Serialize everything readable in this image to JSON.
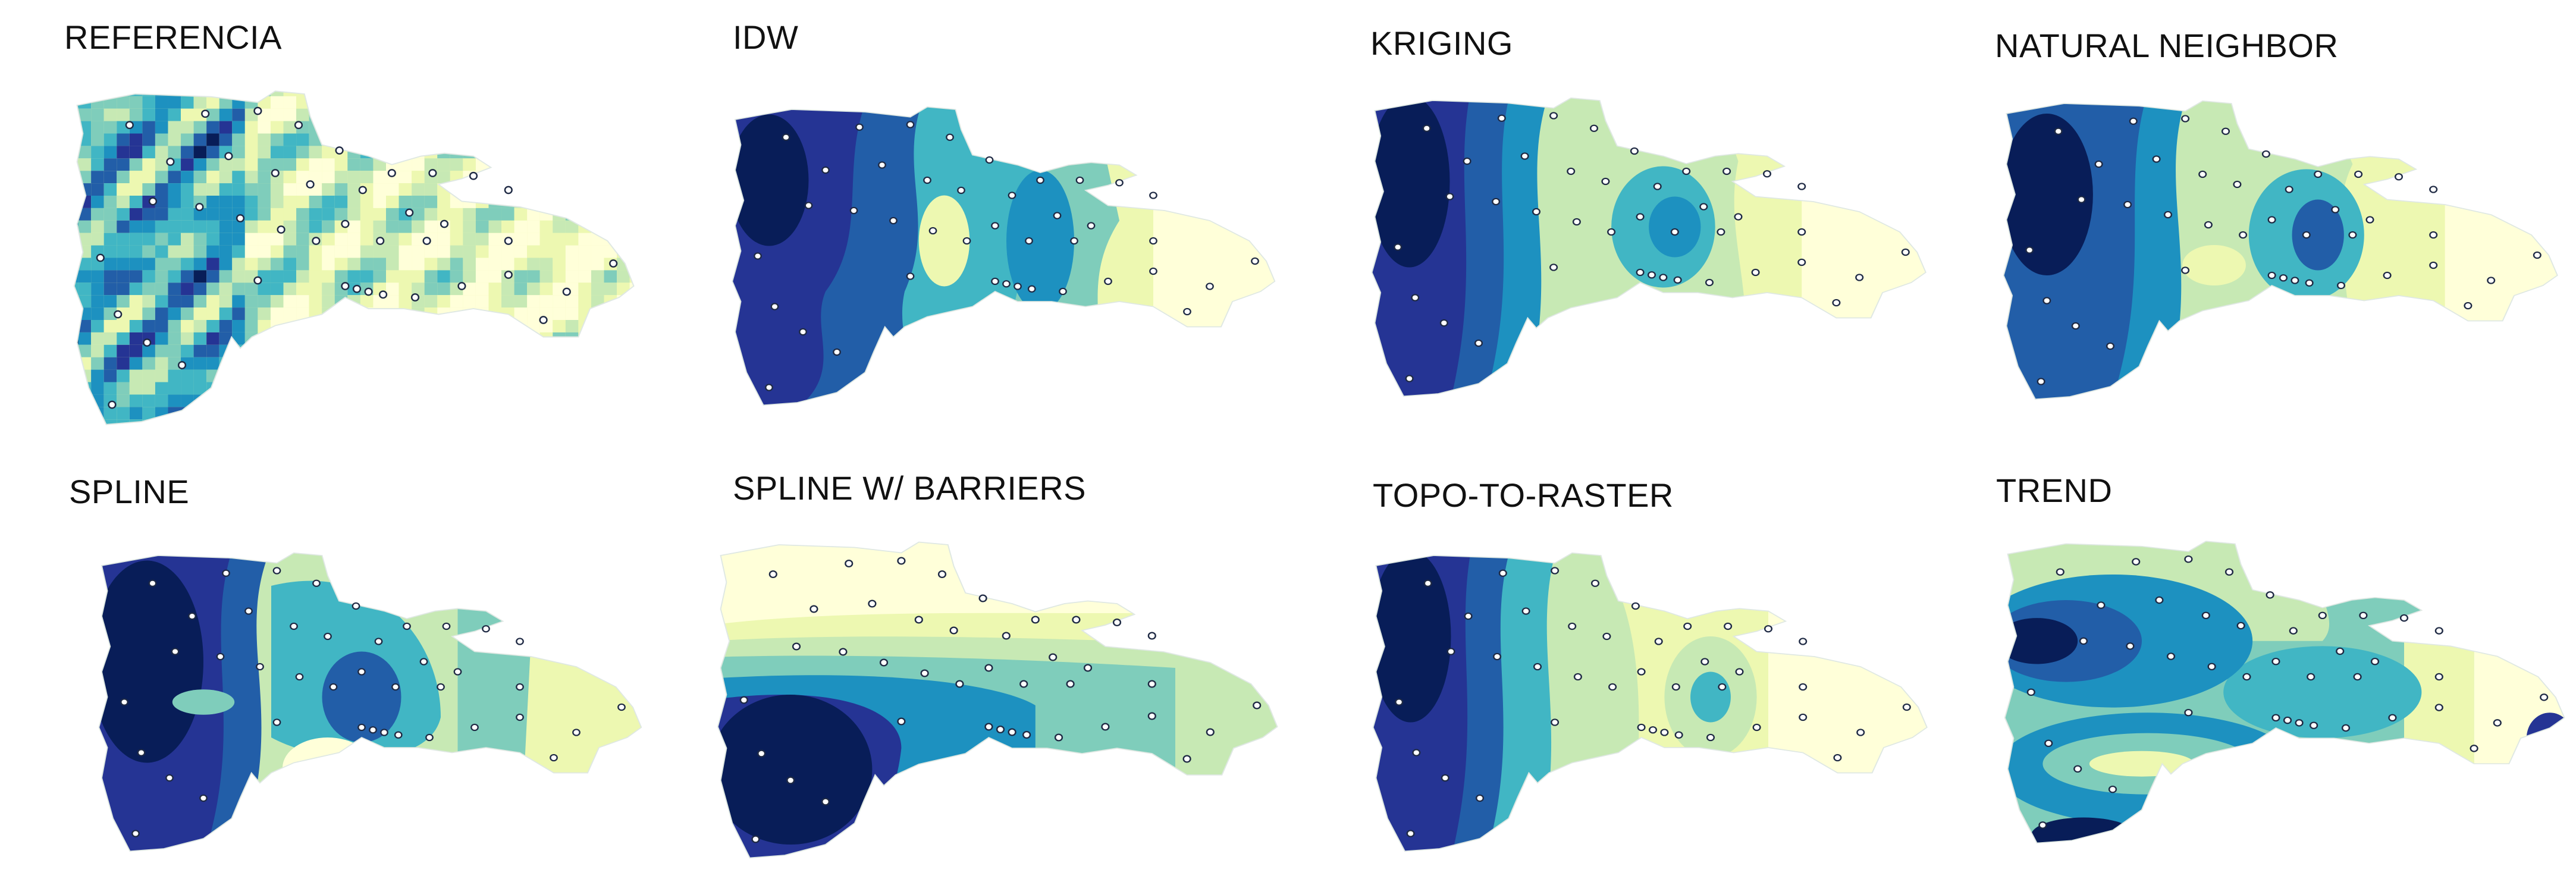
{
  "figure": {
    "panels": [
      {
        "id": "referencia",
        "title": "REFERENCIA"
      },
      {
        "id": "idw",
        "title": "IDW"
      },
      {
        "id": "kriging",
        "title": "KRIGING"
      },
      {
        "id": "natural-neighbor",
        "title": "NATURAL NEIGHBOR"
      },
      {
        "id": "spline",
        "title": "SPLINE"
      },
      {
        "id": "spline-barriers",
        "title": "SPLINE W/ BARRIERS"
      },
      {
        "id": "topo-to-raster",
        "title": "TOPO-TO-RASTER"
      },
      {
        "id": "trend",
        "title": "TREND"
      }
    ],
    "colors": {
      "ramp": [
        "#ffffd9",
        "#edf8b1",
        "#c7e9b4",
        "#7fcdbb",
        "#41b6c4",
        "#1d91c0",
        "#225ea8",
        "#253494",
        "#081d58"
      ],
      "station_fill": "#ffffff",
      "station_stroke": "#1f2a44",
      "background": "#ffffff"
    }
  }
}
